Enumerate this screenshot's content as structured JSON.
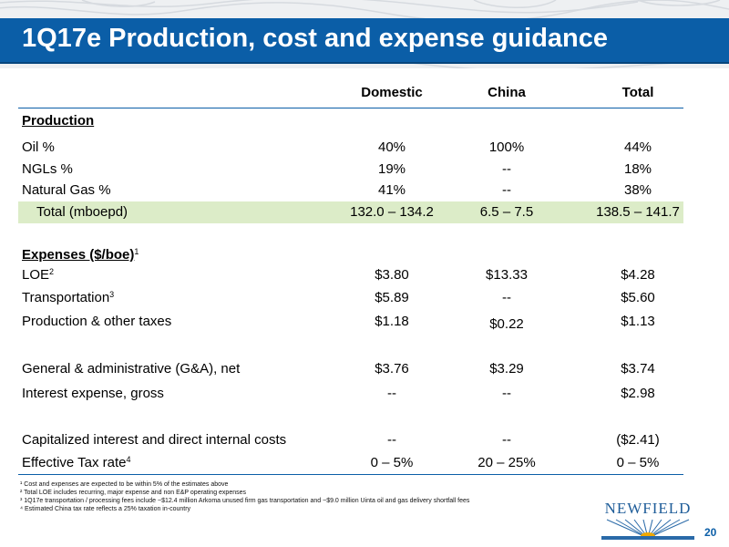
{
  "title": "1Q17e Production, cost and expense guidance",
  "columns": [
    "Domestic",
    "China",
    "Total"
  ],
  "sections": {
    "production": "Production",
    "expenses": "Expenses ($/boe)",
    "expenses_sup": "1"
  },
  "rows": [
    {
      "label": "Oil %",
      "domestic": "40%",
      "china": "100%",
      "total": "44%"
    },
    {
      "label": "NGLs %",
      "domestic": "19%",
      "china": "--",
      "total": "18%"
    },
    {
      "label": "Natural Gas %",
      "domestic": "41%",
      "china": "--",
      "total": "38%"
    },
    {
      "label": "Total (mboepd)",
      "domestic": "132.0 – 134.2",
      "china": "6.5 – 7.5",
      "total": "138.5 – 141.7"
    },
    {
      "label": "LOE",
      "sup": "2",
      "domestic": "$3.80",
      "china": "$13.33",
      "total": "$4.28"
    },
    {
      "label": "Transportation",
      "sup": "3",
      "domestic": "$5.89",
      "china": "--",
      "total": "$5.60"
    },
    {
      "label": "Production & other taxes",
      "domestic": "$1.18",
      "china": "$0.22",
      "total": "$1.13"
    },
    {
      "label": "General & administrative (G&A), net",
      "domestic": "$3.76",
      "china": "$3.29",
      "total": "$3.74"
    },
    {
      "label": "Interest expense, gross",
      "domestic": "--",
      "china": "--",
      "total": "$2.98"
    },
    {
      "label": "Capitalized interest and direct internal costs",
      "domestic": "--",
      "china": "--",
      "total": "($2.41)"
    },
    {
      "label": "Effective Tax rate",
      "sup": "4",
      "domestic": "0 – 5%",
      "china": "20 – 25%",
      "total": "0 – 5%"
    }
  ],
  "footnotes": [
    "¹ Cost and expenses are expected to be within 5% of the estimates above",
    "² Total LOE includes recurring, major expense and non E&P operating expenses",
    "³ 1Q17e transportation / processing fees include ~$12.4 million Arkoma unused firm gas transportation and ~$9.0 million Uinta oil and gas delivery shortfall fees",
    "⁴ Estimated China tax rate reflects a 25% taxation in-country"
  ],
  "logo_text": "NEWFIELD",
  "page_number": "20",
  "colors": {
    "title_bar": "#0b5ea7",
    "total_row_highlight": "#dcecc8",
    "logo": "#1f5d99"
  }
}
